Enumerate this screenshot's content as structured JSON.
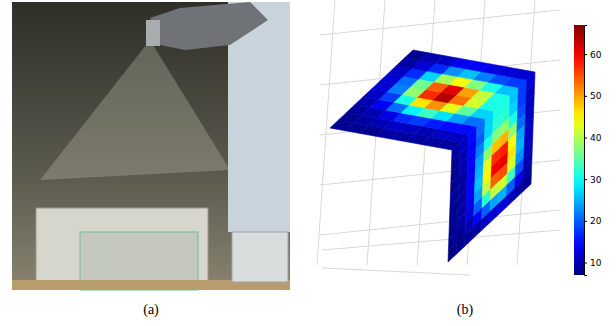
{
  "figure": {
    "labels": [
      "(a)",
      "(b)"
    ]
  },
  "chart_data": {
    "type": "heatmap",
    "cells": [
      [
        [
          9,
          11,
          15,
          21,
          27,
          31,
          31,
          26,
          18,
          12
        ],
        [
          9,
          11,
          15,
          24,
          35,
          42,
          41,
          31,
          19,
          12
        ],
        [
          9,
          10,
          16,
          28,
          43,
          53,
          50,
          37,
          22,
          13
        ],
        [
          9,
          11,
          18,
          33,
          51,
          64,
          61,
          44,
          26,
          14
        ],
        [
          9,
          11,
          17,
          29,
          46,
          57,
          54,
          39,
          23,
          14
        ],
        [
          8,
          10,
          13,
          21,
          31,
          38,
          36,
          27,
          17,
          11
        ],
        [
          8,
          9,
          10,
          14,
          18,
          22,
          21,
          17,
          12,
          10
        ],
        [
          8,
          8,
          9,
          10,
          11,
          12,
          12,
          11,
          9,
          8
        ]
      ],
      [
        [
          9,
          11,
          15,
          21,
          27,
          31,
          31,
          26,
          18,
          12
        ],
        [
          8,
          10,
          14,
          20,
          27,
          32,
          32,
          27,
          18,
          11
        ],
        [
          8,
          10,
          14,
          22,
          31,
          37,
          38,
          31,
          19,
          11
        ],
        [
          8,
          9,
          14,
          24,
          38,
          48,
          49,
          38,
          21,
          11
        ],
        [
          8,
          9,
          14,
          25,
          43,
          57,
          58,
          44,
          24,
          11
        ],
        [
          8,
          9,
          14,
          26,
          45,
          60,
          61,
          46,
          25,
          11
        ],
        [
          8,
          9,
          13,
          24,
          41,
          54,
          55,
          42,
          23,
          11
        ],
        [
          8,
          9,
          12,
          20,
          32,
          41,
          42,
          33,
          19,
          10
        ],
        [
          8,
          8,
          10,
          14,
          20,
          24,
          25,
          20,
          13,
          9
        ],
        [
          7,
          8,
          8,
          9,
          11,
          12,
          12,
          11,
          9,
          8
        ]
      ]
    ],
    "colorbar": {
      "range": [
        7,
        67
      ],
      "ticks": [
        10,
        20,
        30,
        40,
        50,
        60
      ]
    },
    "tick_labels": false
  }
}
